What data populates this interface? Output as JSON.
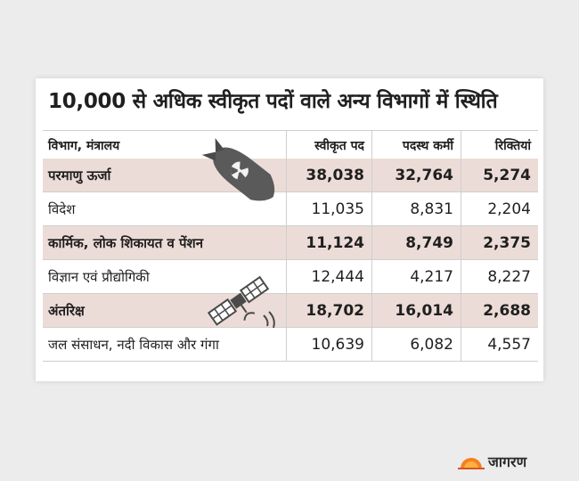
{
  "chart_data": {
    "type": "table",
    "title": "10,000 से अधिक स्वीकृत पदों वाले अन्य विभागों में स्थिति",
    "columns": [
      "विभाग, मंत्रालय",
      "स्वीकृत पद",
      "पदस्थ कर्मी",
      "रिक्तियां"
    ],
    "rows": [
      {
        "name": "परमाणु ऊर्जा",
        "sanctioned": "38,038",
        "filled": "32,764",
        "vacant": "5,274",
        "shaded": true
      },
      {
        "name": "विदेश",
        "sanctioned": "11,035",
        "filled": "8,831",
        "vacant": "2,204",
        "shaded": false
      },
      {
        "name": "कार्मिक, लोक शिकायत व पेंशन",
        "sanctioned": "11,124",
        "filled": "8,749",
        "vacant": "2,375",
        "shaded": true
      },
      {
        "name": "विज्ञान एवं प्रौद्योगिकी",
        "sanctioned": "12,444",
        "filled": "4,217",
        "vacant": "8,227",
        "shaded": false
      },
      {
        "name": "अंतरिक्ष",
        "sanctioned": "18,702",
        "filled": "16,014",
        "vacant": "2,688",
        "shaded": true
      },
      {
        "name": "जल संसाधन, नदी विकास और गंगा",
        "sanctioned": "10,639",
        "filled": "6,082",
        "vacant": "4,557",
        "shaded": false
      }
    ]
  },
  "branding": {
    "logo_text": "जागरण"
  },
  "icons": {
    "rocket": "missile-icon",
    "satellite": "satellite-icon",
    "logo_mark": "sun-icon"
  },
  "colors": {
    "row_shade": "#ecdcd7",
    "background": "#ececec",
    "logo_accent": "#f58220"
  }
}
